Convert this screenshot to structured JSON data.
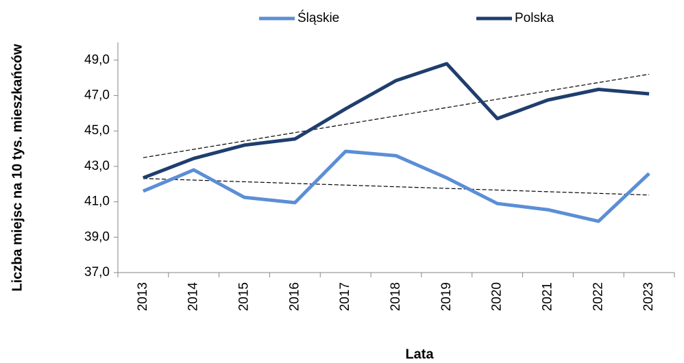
{
  "chart_data": {
    "type": "line",
    "y_label": "Liczba miejsc na 10 tys. mieszkańców",
    "x_label": "Lata",
    "categories": [
      "2013",
      "2014",
      "2015",
      "2016",
      "2017",
      "2018",
      "2019",
      "2020",
      "2021",
      "2022",
      "2023"
    ],
    "series": [
      {
        "name": "Śląskie",
        "color": "#5b8ed6",
        "values": [
          41.6,
          42.8,
          41.25,
          40.95,
          43.85,
          43.6,
          42.35,
          40.9,
          40.55,
          39.9,
          42.6
        ]
      },
      {
        "name": "Polska",
        "color": "#1f3e6e",
        "values": [
          42.35,
          43.45,
          44.2,
          44.55,
          46.25,
          47.85,
          48.8,
          45.7,
          46.75,
          47.35,
          47.1
        ]
      }
    ],
    "ylim": [
      37,
      50
    ],
    "yticks": [
      {
        "value": 37,
        "label": "37,0"
      },
      {
        "value": 39,
        "label": "39,0"
      },
      {
        "value": 41,
        "label": "41,0"
      },
      {
        "value": 43,
        "label": "43,0"
      },
      {
        "value": 45,
        "label": "45,0"
      },
      {
        "value": 47,
        "label": "47,0"
      },
      {
        "value": 49,
        "label": "49,0"
      }
    ],
    "trendline": true,
    "legend": "top"
  }
}
